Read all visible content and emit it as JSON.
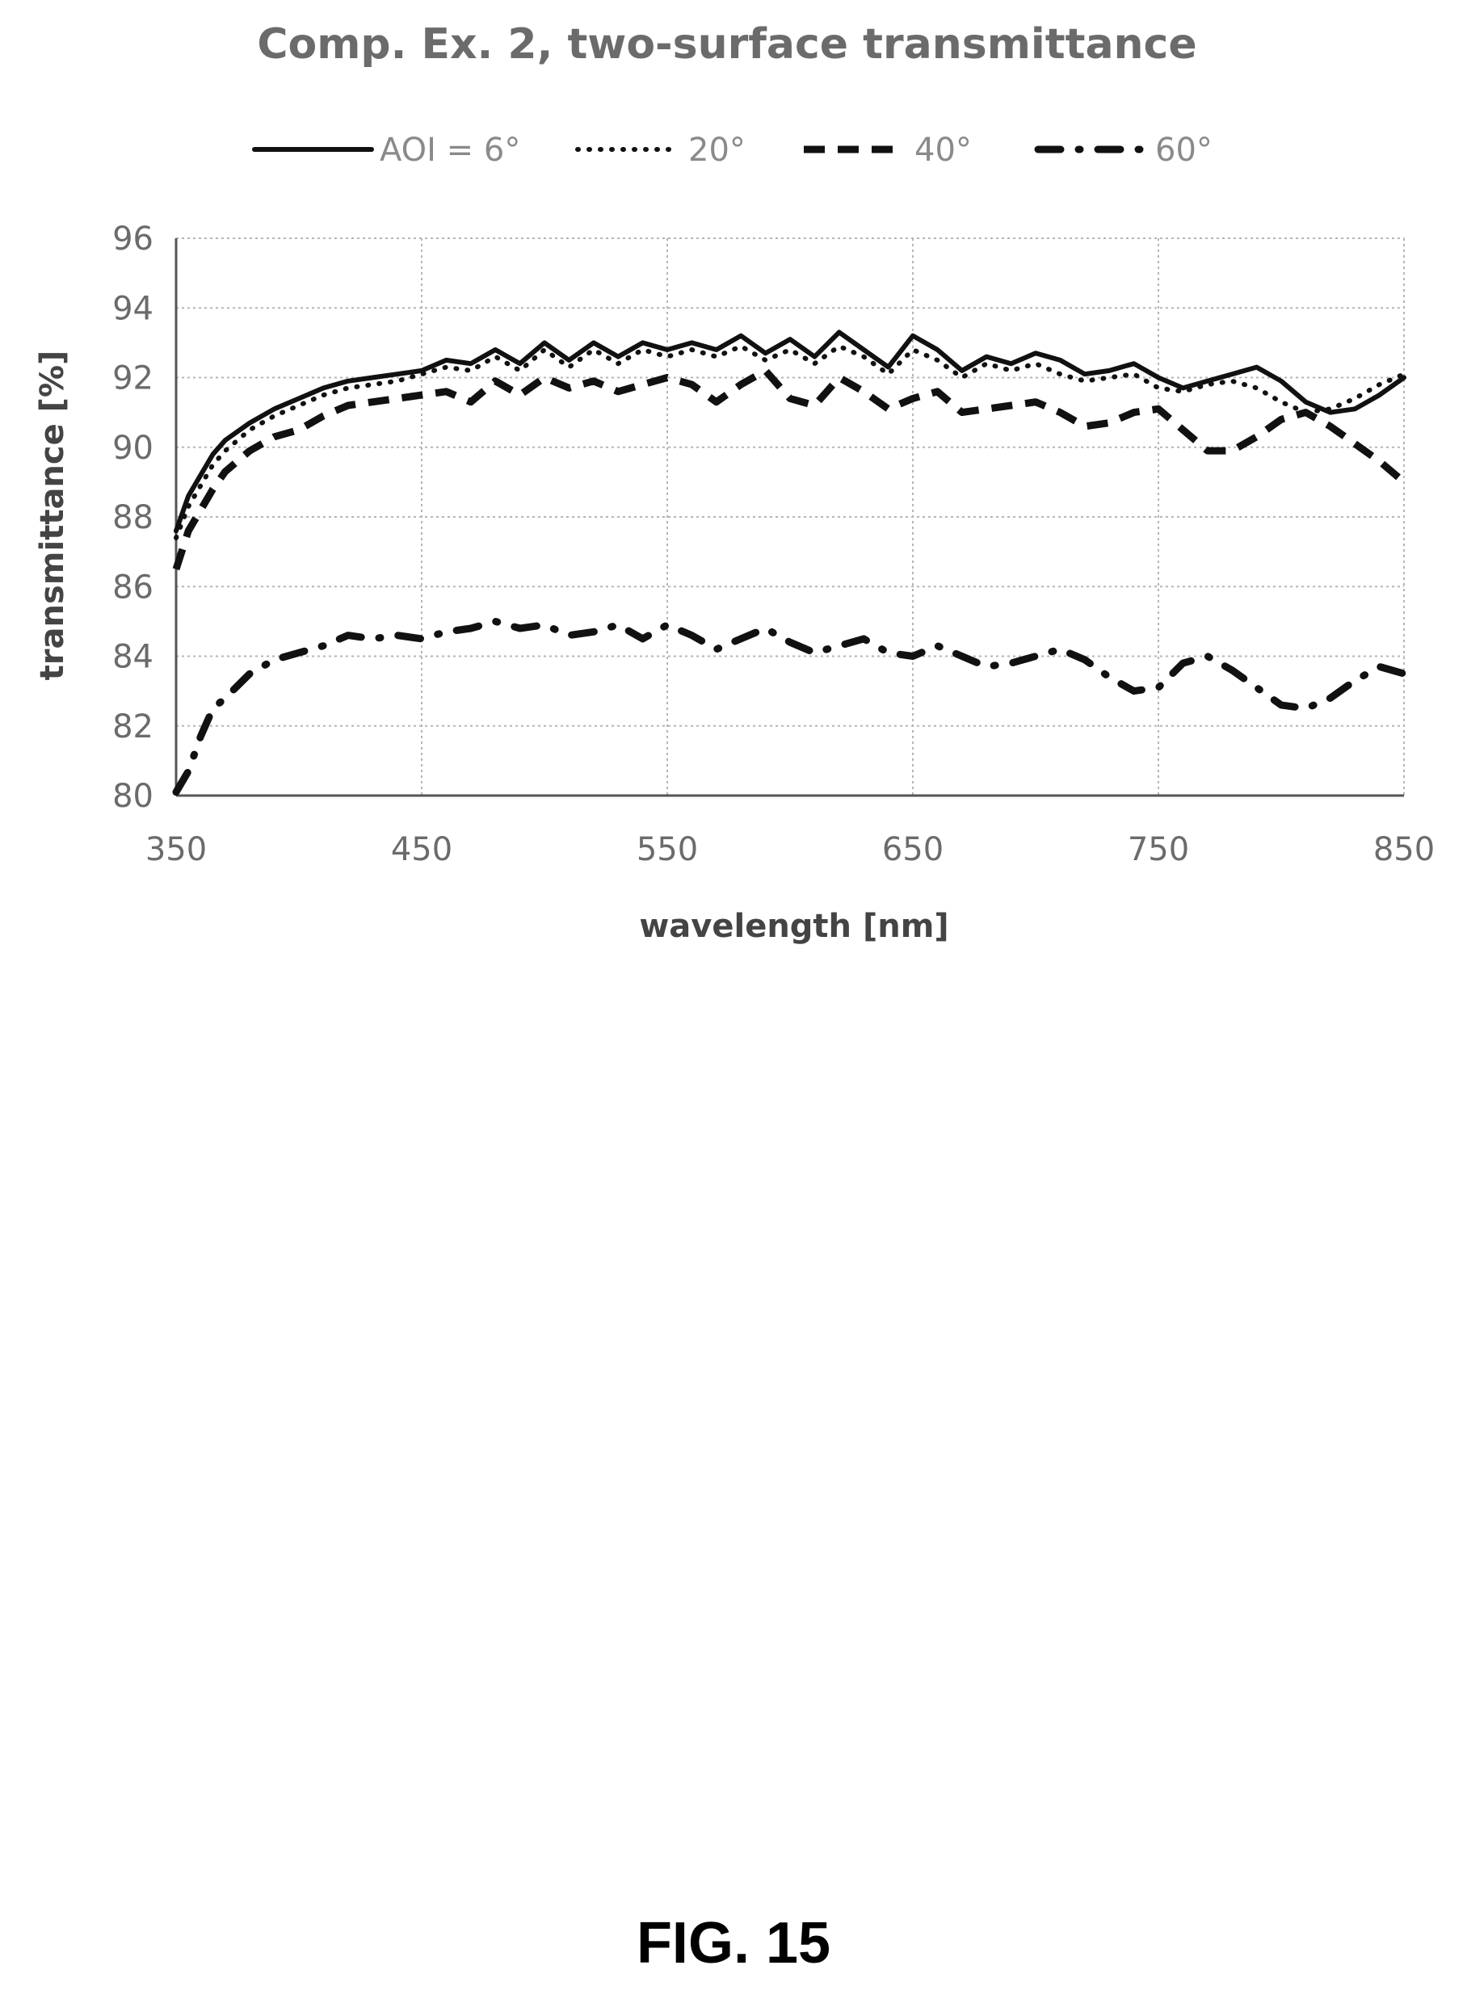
{
  "figure_label": "FIG. 15",
  "chart_data": {
    "type": "line",
    "title": "Comp. Ex. 2, two-surface transmittance",
    "xlabel": "wavelength [nm]",
    "ylabel": "transmittance [%]",
    "xlim": [
      350,
      850
    ],
    "ylim": [
      80,
      96
    ],
    "x_ticks": [
      350,
      450,
      550,
      650,
      750,
      850
    ],
    "y_ticks": [
      80,
      82,
      84,
      86,
      88,
      90,
      92,
      94,
      96
    ],
    "grid": true,
    "legend_position": "top",
    "x": [
      350,
      355,
      360,
      365,
      370,
      380,
      390,
      400,
      410,
      420,
      430,
      440,
      450,
      460,
      470,
      480,
      490,
      500,
      510,
      520,
      530,
      540,
      550,
      560,
      570,
      580,
      590,
      600,
      610,
      620,
      630,
      640,
      650,
      660,
      670,
      680,
      690,
      700,
      710,
      720,
      730,
      740,
      750,
      760,
      770,
      780,
      790,
      800,
      810,
      820,
      830,
      840,
      850
    ],
    "series": [
      {
        "name": "AOI = 6°",
        "style": "solid",
        "values": [
          87.6,
          88.6,
          89.2,
          89.8,
          90.2,
          90.7,
          91.1,
          91.4,
          91.7,
          91.9,
          92.0,
          92.1,
          92.2,
          92.5,
          92.4,
          92.8,
          92.4,
          93.0,
          92.5,
          93.0,
          92.6,
          93.0,
          92.8,
          93.0,
          92.8,
          93.2,
          92.7,
          93.1,
          92.6,
          93.3,
          92.8,
          92.3,
          93.2,
          92.8,
          92.2,
          92.6,
          92.4,
          92.7,
          92.5,
          92.1,
          92.2,
          92.4,
          92.0,
          91.7,
          91.9,
          92.1,
          92.3,
          91.9,
          91.3,
          91.0,
          91.1,
          91.5,
          92.0
        ]
      },
      {
        "name": "20°",
        "style": "dotted",
        "values": [
          87.4,
          88.3,
          88.9,
          89.5,
          89.9,
          90.5,
          90.9,
          91.2,
          91.5,
          91.7,
          91.8,
          91.9,
          92.1,
          92.3,
          92.2,
          92.6,
          92.2,
          92.8,
          92.3,
          92.8,
          92.4,
          92.8,
          92.6,
          92.8,
          92.6,
          92.9,
          92.5,
          92.8,
          92.4,
          92.9,
          92.6,
          92.1,
          92.8,
          92.5,
          92.0,
          92.4,
          92.2,
          92.4,
          92.1,
          91.9,
          92.0,
          92.1,
          91.7,
          91.6,
          91.8,
          91.9,
          91.7,
          91.3,
          91.0,
          91.1,
          91.4,
          91.8,
          92.1
        ]
      },
      {
        "name": "40°",
        "style": "dashed",
        "values": [
          86.5,
          87.6,
          88.2,
          88.8,
          89.3,
          89.9,
          90.3,
          90.5,
          90.9,
          91.2,
          91.3,
          91.4,
          91.5,
          91.6,
          91.3,
          91.9,
          91.5,
          92.0,
          91.7,
          91.9,
          91.6,
          91.8,
          92.0,
          91.8,
          91.3,
          91.8,
          92.2,
          91.4,
          91.2,
          92.0,
          91.6,
          91.1,
          91.4,
          91.6,
          91.0,
          91.1,
          91.2,
          91.3,
          91.0,
          90.6,
          90.7,
          91.0,
          91.1,
          90.5,
          89.9,
          89.9,
          90.3,
          90.8,
          91.0,
          90.6,
          90.1,
          89.6,
          89.0
        ]
      },
      {
        "name": "60°",
        "style": "dash-dot",
        "values": [
          80.1,
          80.7,
          81.7,
          82.5,
          82.8,
          83.5,
          83.9,
          84.1,
          84.3,
          84.6,
          84.5,
          84.6,
          84.5,
          84.7,
          84.8,
          85.0,
          84.8,
          84.9,
          84.6,
          84.7,
          84.9,
          84.5,
          84.9,
          84.6,
          84.2,
          84.5,
          84.8,
          84.4,
          84.1,
          84.3,
          84.5,
          84.1,
          84.0,
          84.3,
          84.0,
          83.7,
          83.8,
          84.0,
          84.2,
          83.9,
          83.4,
          83.0,
          83.1,
          83.8,
          84.0,
          83.6,
          83.1,
          82.6,
          82.5,
          82.8,
          83.3,
          83.7,
          83.5
        ]
      }
    ]
  }
}
